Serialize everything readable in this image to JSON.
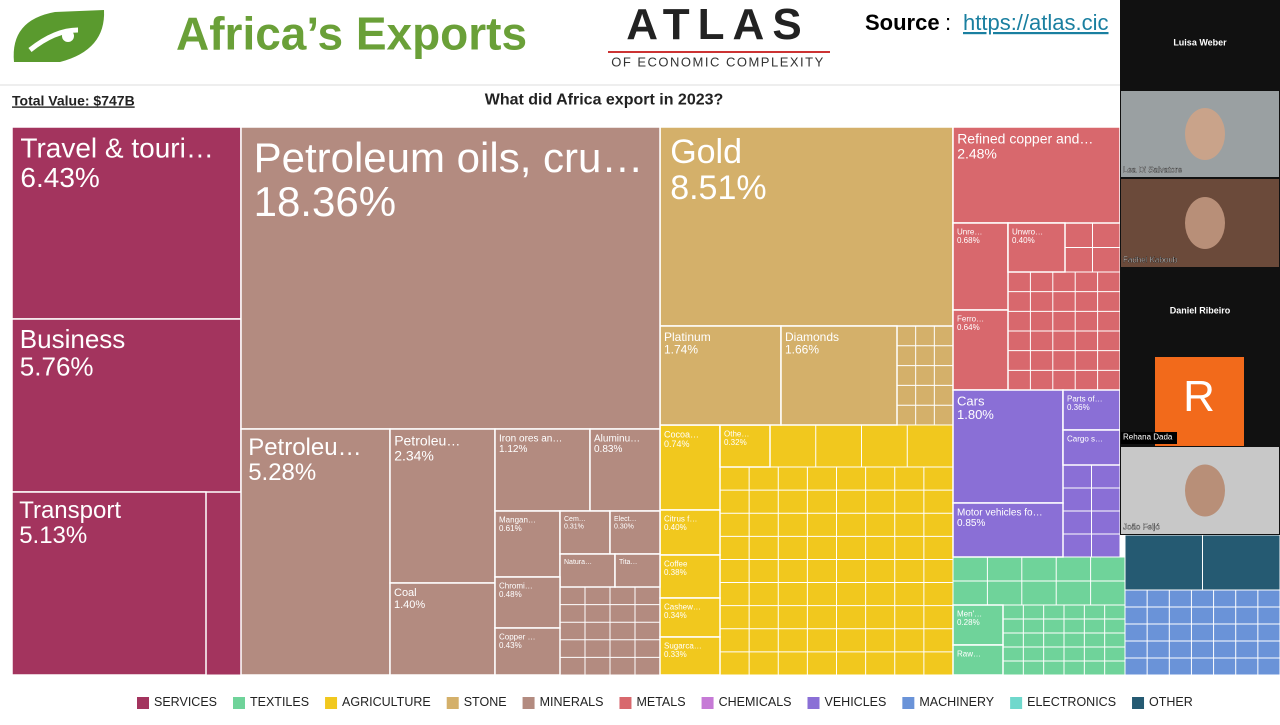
{
  "header": {
    "title": "Africa’s Exports",
    "logo_main": "ATLAS",
    "logo_sub": "OF ECONOMIC COMPLEXITY",
    "source_label": "Source",
    "source_url": "https://atlas.cic"
  },
  "total": "Total Value: $747B",
  "question": "What did Africa export in 2023?",
  "groups": [
    {
      "name": "SERVICES",
      "color": "#a3345e",
      "tiles": [
        {
          "label": "Travel & touri…",
          "share": "6.43%"
        },
        {
          "label": "Business",
          "share": "5.76%"
        },
        {
          "label": "Transport",
          "share": "5.13%"
        }
      ]
    },
    {
      "name": "TEXTILES",
      "color": "#6fd39a",
      "tiles": [
        {
          "label": "Men'…",
          "share": "0.28%"
        },
        {
          "label": "Raw…"
        }
      ]
    },
    {
      "name": "AGRICULTURE",
      "color": "#f1c81e",
      "tiles": [
        {
          "label": "Cocoa…",
          "share": "0.74%"
        },
        {
          "label": "Othe…",
          "share": "0.32%"
        },
        {
          "label": "Citrus f…",
          "share": "0.40%"
        },
        {
          "label": "Coffee",
          "share": "0.38%"
        },
        {
          "label": "Cashew…",
          "share": "0.34%"
        },
        {
          "label": "Sugarca…",
          "share": "0.33%"
        }
      ]
    },
    {
      "name": "STONE",
      "color": "#d4b06a",
      "tiles": [
        {
          "label": "Gold",
          "share": "8.51%"
        },
        {
          "label": "Platinum",
          "share": "1.74%"
        },
        {
          "label": "Diamonds",
          "share": "1.66%"
        }
      ]
    },
    {
      "name": "MINERALS",
      "color": "#b38b80",
      "tiles": [
        {
          "label": "Petroleum oils, cru…",
          "share": "18.36%"
        },
        {
          "label": "Petroleu…",
          "share": "5.28%"
        },
        {
          "label": "Petroleu…",
          "share": "2.34%"
        },
        {
          "label": "Coal",
          "share": "1.40%"
        },
        {
          "label": "Iron ores an…",
          "share": "1.12%"
        },
        {
          "label": "Aluminu…",
          "share": "0.83%"
        },
        {
          "label": "Mangan…",
          "share": "0.61%"
        },
        {
          "label": "Cem…",
          "share": "0.31%"
        },
        {
          "label": "Elect…",
          "share": "0.30%"
        },
        {
          "label": "Natura…"
        },
        {
          "label": "Tita…"
        },
        {
          "label": "Chromi…",
          "share": "0.48%"
        },
        {
          "label": "Copper …",
          "share": "0.43%"
        }
      ]
    },
    {
      "name": "METALS",
      "color": "#d8686d",
      "tiles": [
        {
          "label": "Refined copper and…",
          "share": "2.48%"
        },
        {
          "label": "Unre…",
          "share": "0.68%"
        },
        {
          "label": "Unwro…",
          "share": "0.40%"
        },
        {
          "label": "Ferro…",
          "share": "0.64%"
        }
      ]
    },
    {
      "name": "CHEMICALS",
      "color": "#c67ad6",
      "tiles": []
    },
    {
      "name": "VEHICLES",
      "color": "#8a6fd6",
      "tiles": [
        {
          "label": "Cars",
          "share": "1.80%"
        },
        {
          "label": "Parts of…",
          "share": "0.36%"
        },
        {
          "label": "Cargo s…"
        },
        {
          "label": "Motor vehicles fo…",
          "share": "0.85%"
        }
      ]
    },
    {
      "name": "MACHINERY",
      "color": "#6a93d8",
      "tiles": []
    },
    {
      "name": "ELECTRONICS",
      "color": "#6fd8cc",
      "tiles": []
    },
    {
      "name": "OTHER",
      "color": "#255a72",
      "tiles": []
    }
  ],
  "participants": [
    "Luisa Weber",
    "Lea Di Salvatore",
    "Fadhel Kaboub",
    "Daniel Ribeiro",
    "Rehana Dada",
    "João Feijó"
  ],
  "avatar": "R"
}
